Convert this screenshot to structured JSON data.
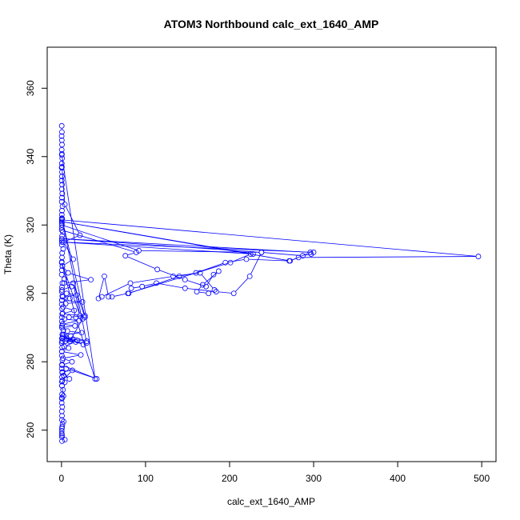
{
  "chart_data": {
    "type": "line",
    "title": "ATOM3 Northbound calc_ext_1640_AMP",
    "xlabel": "calc_ext_1640_AMP",
    "ylabel": "Theta (K)",
    "xlim": [
      -17,
      517
    ],
    "ylim": [
      250.8,
      372.0
    ],
    "xticks": [
      0,
      100,
      200,
      300,
      400,
      500
    ],
    "yticks": [
      260,
      280,
      300,
      320,
      340,
      360
    ],
    "grid": false,
    "line_color": "#0000ff",
    "marker": "open-circle",
    "series": [
      {
        "x": [
          0.3,
          0.5,
          0.2,
          0.4,
          0.6,
          0.3,
          0.5,
          0.8,
          0.4,
          0.2,
          0.6,
          0.5,
          0.3,
          0.7,
          0.4,
          0.9,
          0.5,
          0.3,
          1.2,
          0.6,
          0.4,
          0.8,
          0.5,
          0.3,
          1.6,
          0.7,
          0.5,
          0.4,
          2.0,
          0.8,
          0.6,
          0.4,
          1.1,
          0.5,
          0.3,
          3.5,
          1.0,
          0.6,
          0.4,
          0.9,
          0.5,
          0.3,
          0.7,
          1.4,
          0.5,
          0.4,
          0.6,
          2.2,
          0.9,
          0.5,
          0.3,
          0.7,
          0.4,
          0.5,
          1.0,
          0.6,
          0.3,
          0.8,
          0.5,
          0.4,
          0.6,
          1.8,
          0.7,
          0.5,
          0.3,
          0.9,
          0.4,
          0.6,
          0.5,
          2.5,
          1.2,
          0.8,
          0.5,
          0.3,
          0.4,
          0.7,
          0.5,
          4.0,
          0.6
        ],
        "y": [
          349.0,
          347.2,
          346.0,
          344.8,
          343.5,
          342.0,
          340.8,
          339.5,
          338.0,
          336.8,
          335.5,
          334.2,
          333.0,
          331.8,
          330.5,
          329.2,
          328.0,
          326.8,
          325.5,
          324.2,
          323.0,
          321.8,
          320.5,
          319.2,
          318.0,
          316.8,
          315.5,
          314.2,
          313.0,
          311.8,
          310.5,
          309.2,
          308.0,
          306.8,
          305.5,
          304.2,
          303.0,
          301.8,
          300.5,
          299.2,
          298.0,
          296.8,
          295.5,
          294.2,
          293.0,
          291.8,
          290.5,
          289.2,
          288.0,
          286.8,
          285.5,
          284.2,
          283.0,
          281.8,
          280.5,
          279.2,
          278.0,
          276.8,
          275.5,
          274.2,
          273.0,
          271.8,
          270.5,
          269.2,
          268.0,
          266.8,
          265.5,
          264.2,
          263.0,
          262.5,
          261.8,
          261.0,
          260.5,
          259.8,
          259.0,
          258.5,
          258.0,
          257.2,
          256.8
        ]
      },
      {
        "x": [
          0.5,
          4.0,
          22.0,
          2.5,
          14.0,
          1.0,
          8.0,
          35.0,
          3.0,
          12.0,
          0.6,
          6.0,
          18.0,
          1.5,
          10.0,
          0.4,
          25.0,
          5.0,
          2.0,
          15.0,
          0.8,
          28.0,
          9.0,
          3.5,
          21.0,
          1.2,
          16.0,
          0.5,
          7.0,
          24.0,
          2.0,
          11.0,
          30.0,
          0.9,
          13.0,
          4.5,
          19.0,
          1.4,
          26.0,
          6.5,
          0.7,
          17.0,
          3.0,
          8.5,
          0.4,
          23.0,
          1.8,
          12.5,
          0.6,
          42.0,
          5.5,
          2.6,
          9.5,
          0.8,
          13.0,
          1.0,
          4.0,
          0.6,
          2.3,
          0.5
        ],
        "y": [
          337.0,
          326.0,
          317.0,
          315.0,
          310.0,
          308.0,
          306.0,
          304.0,
          303.0,
          302.0,
          301.0,
          300.0,
          299.5,
          299.0,
          298.5,
          298.0,
          297.5,
          297.0,
          296.0,
          295.0,
          294.0,
          293.5,
          293.0,
          292.5,
          292.0,
          291.0,
          290.5,
          290.0,
          289.0,
          288.5,
          288.0,
          287.5,
          286.0,
          287.0,
          286.5,
          286.0,
          286.2,
          287.5,
          285.0,
          286.8,
          286.0,
          285.8,
          284.5,
          284.0,
          283.0,
          282.0,
          281.0,
          280.0,
          279.0,
          275.0,
          278.0,
          276.0,
          275.0,
          277.0,
          277.5,
          274.5,
          274.0,
          273.0,
          270.0,
          269.5
        ]
      },
      {
        "x": [
          0.4,
          496.0,
          282.0,
          271.0,
          220.0,
          195.0,
          160.0,
          140.0,
          80.0,
          83.0,
          96.0,
          113.0,
          147.0,
          184.0,
          205.0,
          224.0,
          238.0,
          287.0,
          297.0
        ],
        "y": [
          321.5,
          310.8,
          310.5,
          309.5,
          310.0,
          309.0,
          306.0,
          305.0,
          300.0,
          301.5,
          302.0,
          303.0,
          301.5,
          300.5,
          300.0,
          305.0,
          312.0,
          311.0,
          311.5
        ]
      },
      {
        "x": [
          0.3,
          89.0,
          76.0,
          114.0,
          147.0,
          172.0,
          181.0,
          187.0,
          168.0,
          161.0,
          175.0,
          182.0,
          165.0,
          133.0,
          82.0,
          48.0,
          44.0,
          51.0,
          56.0,
          60.0,
          79.0,
          201.0,
          225.0
        ],
        "y": [
          318.5,
          312.0,
          311.0,
          307.0,
          304.0,
          302.0,
          305.5,
          306.5,
          302.5,
          300.5,
          300.0,
          301.0,
          306.0,
          305.0,
          303.0,
          299.0,
          298.5,
          305.0,
          299.0,
          299.0,
          300.0,
          309.0,
          311.5
        ]
      },
      {
        "x": [
          0.5,
          92.0,
          238.0,
          0.4,
          296.0,
          272.0,
          0.3,
          228.0,
          0.5,
          300.0
        ],
        "y": [
          320.0,
          312.5,
          312.0,
          316.0,
          312.0,
          309.5,
          321.0,
          311.5,
          315.0,
          312.0
        ]
      },
      {
        "x": [
          0.4,
          40.0,
          17.0,
          0.3,
          22.0,
          14.0,
          28.0,
          0.5,
          30.0,
          10.0,
          25.0
        ],
        "y": [
          340.5,
          275.0,
          293.0,
          309.0,
          293.5,
          303.0,
          293.0,
          322.0,
          285.5,
          286.0,
          292.5
        ]
      }
    ]
  }
}
